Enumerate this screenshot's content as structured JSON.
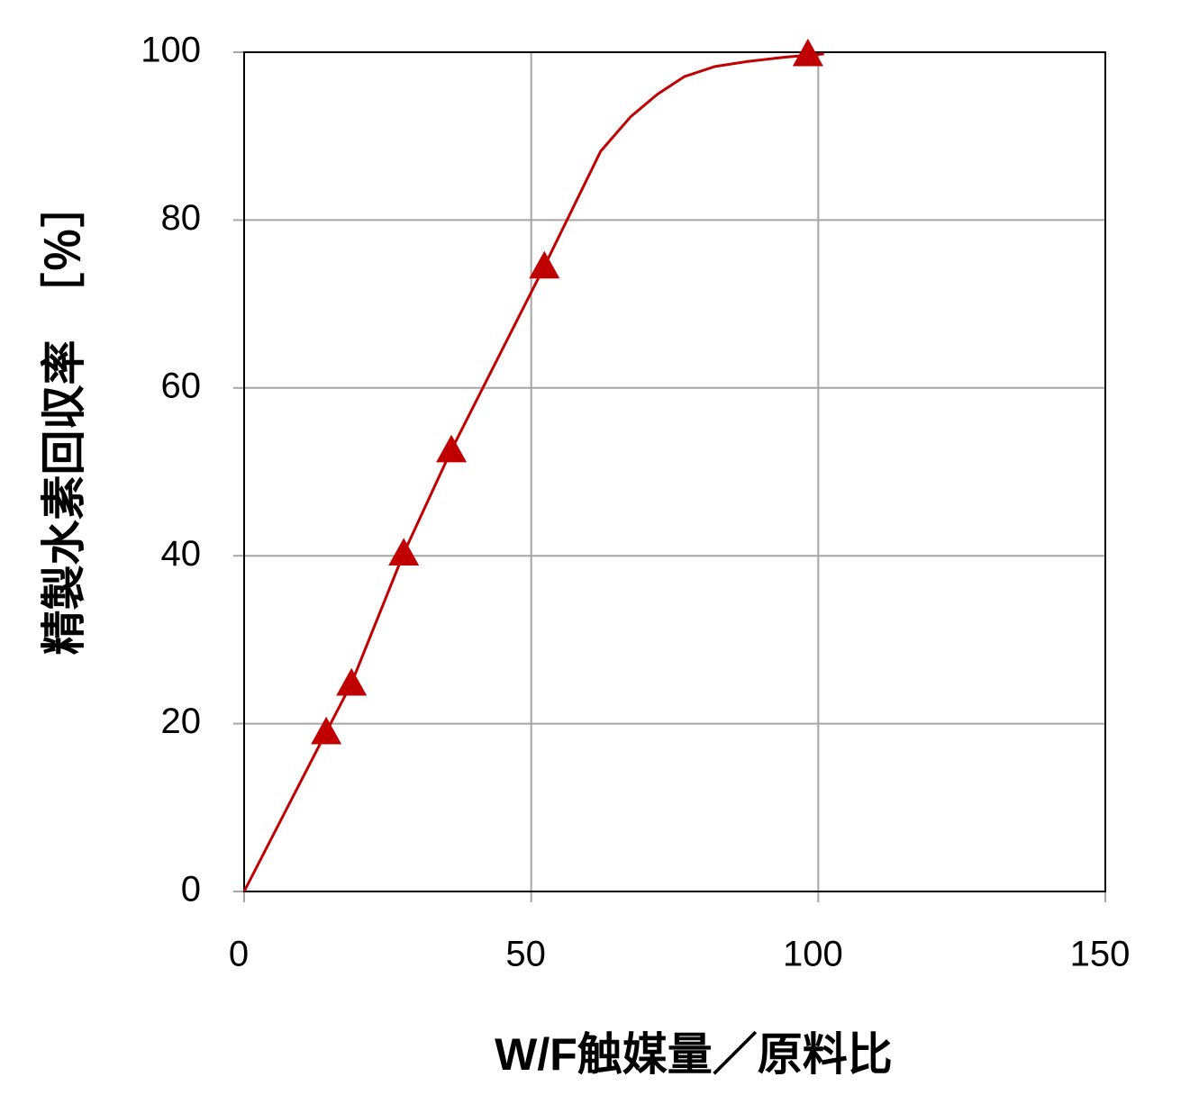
{
  "chart_data": {
    "type": "scatter",
    "x_label": "W/F触媒量／原料比",
    "y_label": "精製水素回収率　［％］",
    "xlim": [
      0,
      150
    ],
    "xticks": [
      0,
      50,
      100,
      150
    ],
    "ylim": [
      0,
      100
    ],
    "yticks": [
      0,
      20,
      40,
      60,
      80,
      100
    ],
    "grid": true,
    "series": [
      {
        "style": "line",
        "color": "#c00000",
        "x": [
          0,
          14.3,
          18.7,
          27.8,
          36.1,
          52.3,
          62.1,
          67.3,
          72,
          76.7,
          82,
          87.7,
          94,
          101
        ],
        "values": [
          0,
          19.0,
          24.8,
          40.3,
          52.6,
          74.5,
          88.2,
          92.3,
          95,
          97.1,
          98.3,
          98.9,
          99.4,
          99.8
        ]
      },
      {
        "style": "markers",
        "marker": "triangle",
        "color": "#c00000",
        "x": [
          14.3,
          18.7,
          27.8,
          36.1,
          52.3,
          98.2
        ],
        "values": [
          19.0,
          24.8,
          40.3,
          52.6,
          74.5,
          99.8
        ]
      }
    ]
  }
}
